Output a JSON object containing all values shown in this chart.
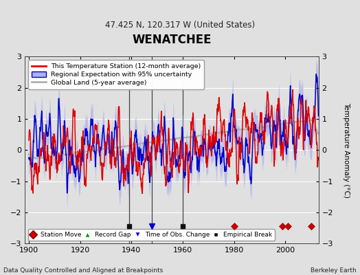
{
  "title": "WENATCHEE",
  "subtitle": "47.425 N, 120.317 W (United States)",
  "ylabel": "Temperature Anomaly (°C)",
  "xlabel_bottom": "Data Quality Controlled and Aligned at Breakpoints",
  "xlabel_right": "Berkeley Earth",
  "ylim": [
    -3,
    3
  ],
  "xlim": [
    1898.5,
    2013
  ],
  "yticks": [
    -3,
    -2,
    -1,
    0,
    1,
    2,
    3
  ],
  "xticks": [
    1900,
    1920,
    1940,
    1960,
    1980,
    2000
  ],
  "background_color": "#e0e0e0",
  "plot_bg_color": "#e0e0e0",
  "grid_color": "#ffffff",
  "station_move_years": [
    1980,
    1999,
    2001,
    2010
  ],
  "record_gap_years": [],
  "obs_change_years": [
    1948
  ],
  "empirical_break_years": [
    1939,
    1960
  ],
  "vert_line_years": [
    1939,
    1948,
    1960
  ],
  "red_line_color": "#dd0000",
  "blue_line_color": "#0000cc",
  "blue_fill_color": "#b0b0ee",
  "gray_line_color": "#b0b0b0",
  "seed": 42
}
